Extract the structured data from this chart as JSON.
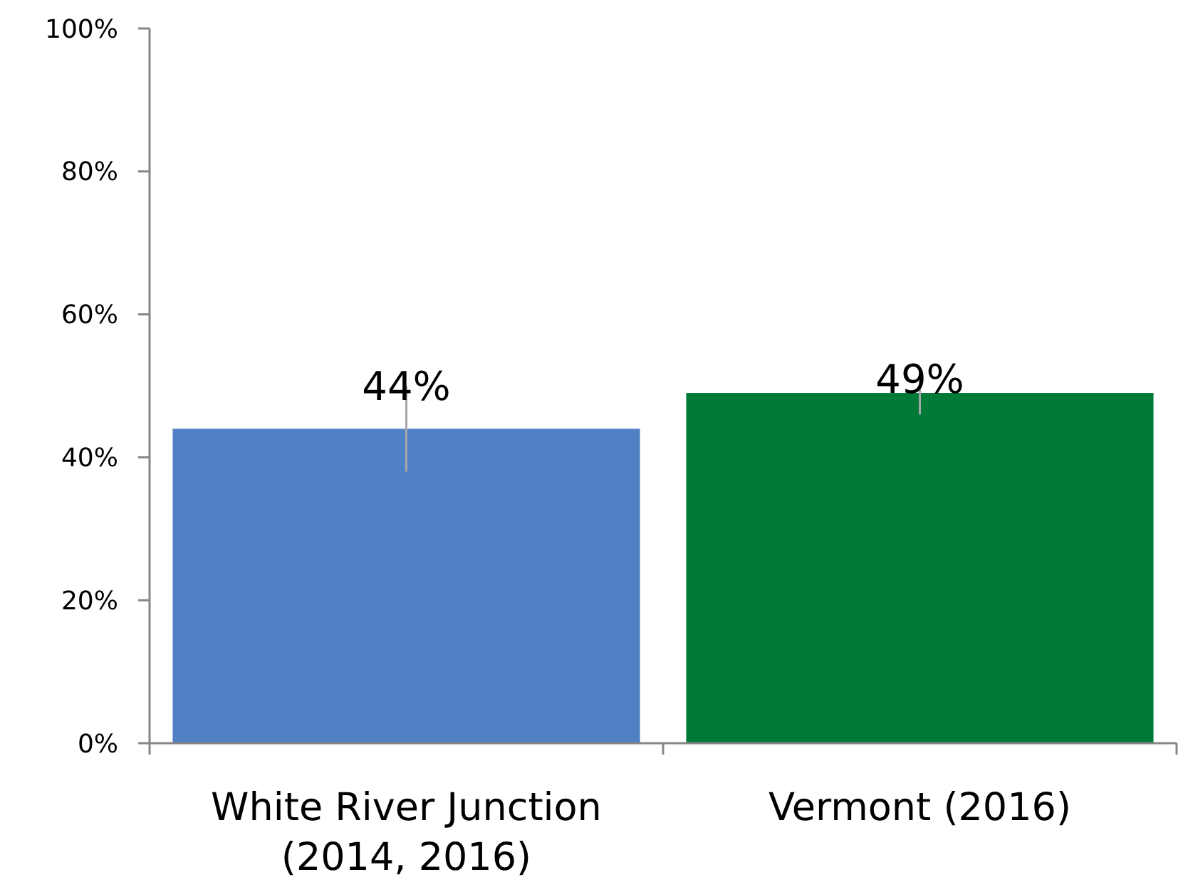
{
  "chart_data": {
    "type": "bar",
    "categories": [
      "White River Junction (2014, 2016)",
      "Vermont (2016)"
    ],
    "values": [
      44,
      49
    ],
    "colors": [
      "#4f81c4",
      "#007a37"
    ],
    "errors": [
      [
        38,
        50
      ],
      [
        46,
        51
      ]
    ],
    "value_labels": [
      "44%",
      "49%"
    ],
    "ylim": [
      0,
      100
    ],
    "yticks": [
      {
        "value": 0,
        "label": "0%"
      },
      {
        "value": 20,
        "label": "20%"
      },
      {
        "value": 40,
        "label": "40%"
      },
      {
        "value": 60,
        "label": "60%"
      },
      {
        "value": 80,
        "label": "80%"
      },
      {
        "value": 100,
        "label": "100%"
      }
    ],
    "grid": false
  }
}
